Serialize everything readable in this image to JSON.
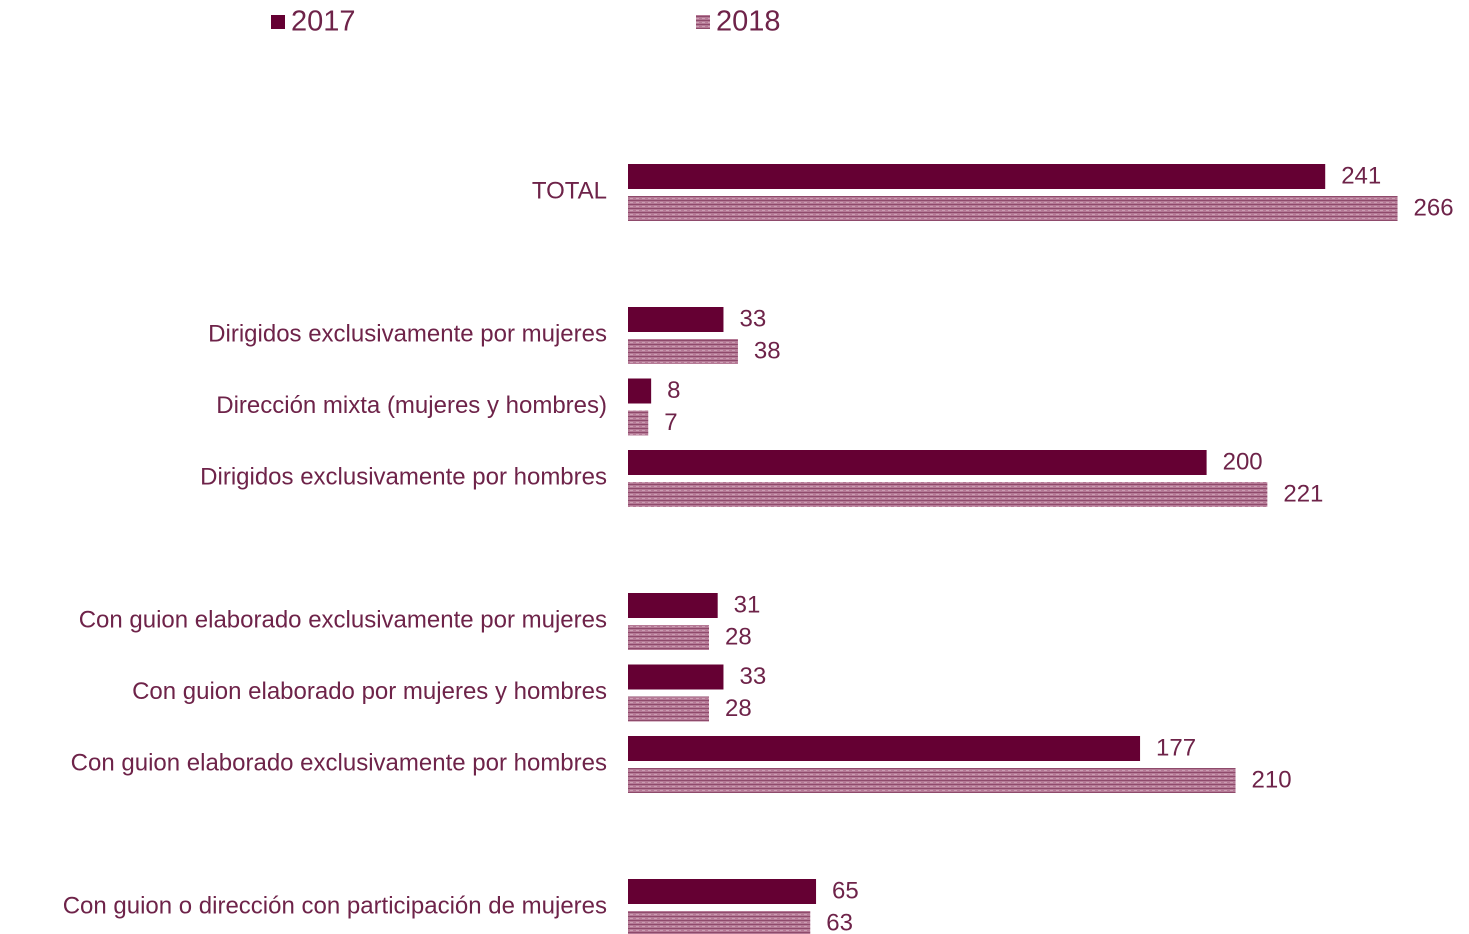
{
  "chart_data": {
    "type": "bar",
    "orientation": "horizontal",
    "categories": [
      "TOTAL",
      null,
      "Dirigidos exclusivamente por mujeres",
      "Dirección mixta (mujeres y hombres)",
      "Dirigidos exclusivamente por hombres",
      null,
      "Con guion elaborado exclusivamente por mujeres",
      "Con guion elaborado por mujeres y hombres",
      "Con guion elaborado exclusivamente por hombres",
      null,
      "Con guion o dirección con participación de mujeres"
    ],
    "series": [
      {
        "name": "2017",
        "color": "#650033",
        "values": [
          241,
          null,
          33,
          8,
          200,
          null,
          31,
          33,
          177,
          null,
          65
        ]
      },
      {
        "name": "2018",
        "color": "#b57a96",
        "pattern": "hatched",
        "values": [
          266,
          null,
          38,
          7,
          221,
          null,
          28,
          28,
          210,
          null,
          63
        ]
      }
    ],
    "legend": "top-left"
  }
}
